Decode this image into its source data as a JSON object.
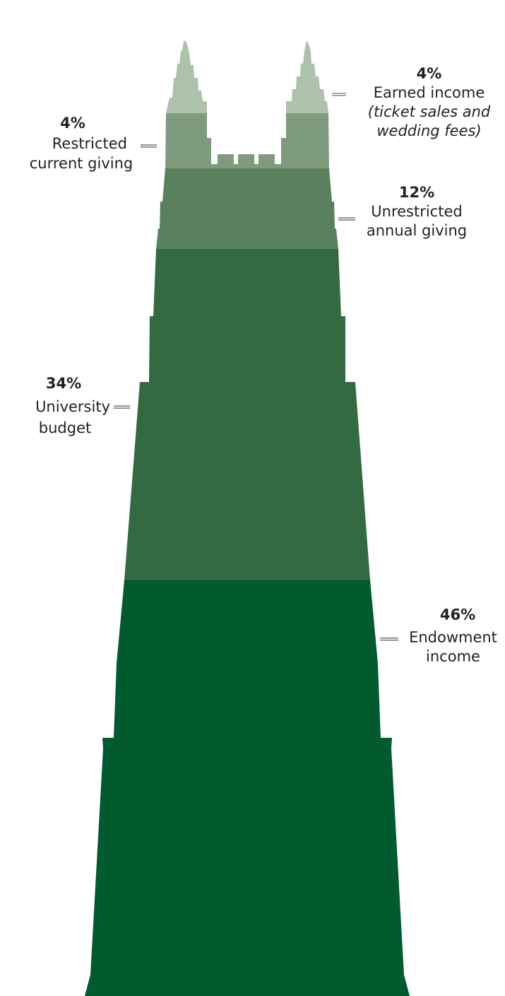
{
  "chart_data": {
    "type": "bar",
    "categories": [
      "Endowment income",
      "University budget",
      "Unrestricted annual giving",
      "Restricted current giving",
      "Earned income"
    ],
    "values": [
      46,
      34,
      12,
      4,
      4
    ],
    "unit": "%",
    "colors": [
      "#025a2f",
      "#336a42",
      "#5a815e",
      "#7f9b7d",
      "#adc2ab"
    ],
    "labels": [
      {
        "pct": "46%",
        "lines": [
          "Endowment",
          "income"
        ],
        "note": []
      },
      {
        "pct": "34%",
        "lines": [
          "University",
          "budget"
        ],
        "note": []
      },
      {
        "pct": "12%",
        "lines": [
          "Unrestricted",
          "annual giving"
        ],
        "note": []
      },
      {
        "pct": "4%",
        "lines": [
          "Restricted",
          "current giving"
        ],
        "note": []
      },
      {
        "pct": "4%",
        "lines": [
          "Earned income"
        ],
        "note": [
          "(ticket sales and",
          "wedding fees)"
        ]
      }
    ]
  }
}
